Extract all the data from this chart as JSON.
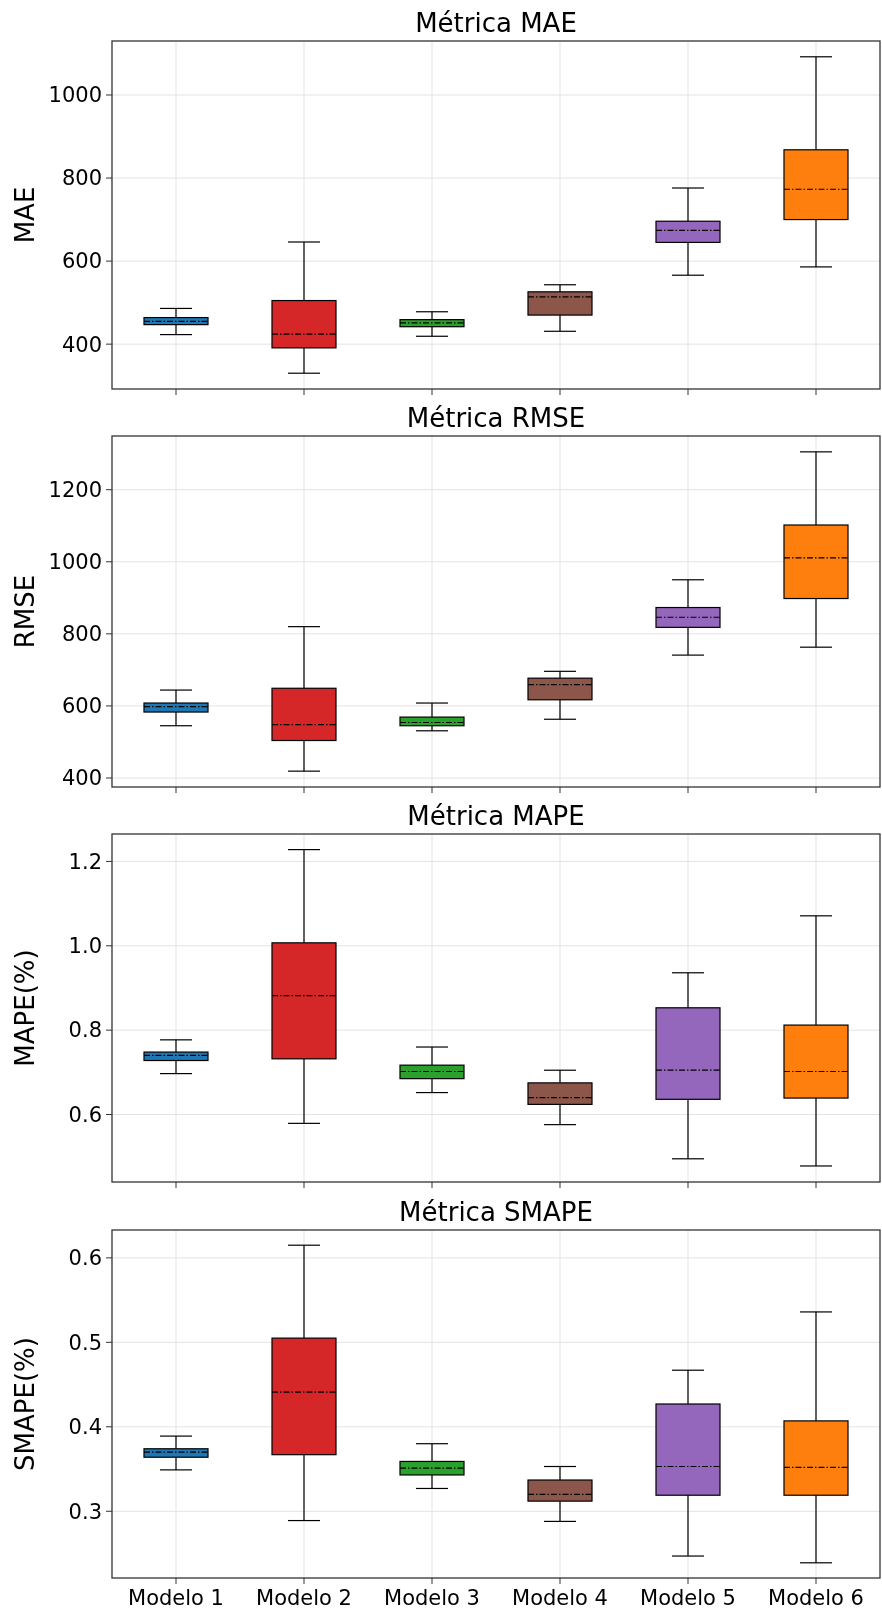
{
  "chart_data": [
    {
      "type": "box",
      "title": "Métrica MAE",
      "ylabel": "MAE",
      "categories": [
        null,
        null,
        null,
        null,
        null,
        null
      ],
      "colors": [
        "#1f77b4",
        "#d62728",
        "#2ca02c",
        "#8c564b",
        "#9467bd",
        "#ff7f0e"
      ],
      "ylim": [
        292,
        1130
      ],
      "yticks": [
        400,
        600,
        800,
        1000
      ],
      "grid": true,
      "tick_labels": "y",
      "boxes": [
        {
          "low": 423,
          "q1": 447,
          "median": 455,
          "q3": 464,
          "high": 486
        },
        {
          "low": 330,
          "q1": 391,
          "median": 424,
          "q3": 505,
          "high": 646
        },
        {
          "low": 419,
          "q1": 442,
          "median": 451,
          "q3": 459,
          "high": 478
        },
        {
          "low": 431,
          "q1": 470,
          "median": 514,
          "q3": 526,
          "high": 543
        },
        {
          "low": 566,
          "q1": 645,
          "median": 674,
          "q3": 696,
          "high": 776
        },
        {
          "low": 586,
          "q1": 700,
          "median": 773,
          "q3": 868,
          "high": 1092
        }
      ]
    },
    {
      "type": "box",
      "title": "Métrica RMSE",
      "ylabel": "RMSE",
      "categories": [
        null,
        null,
        null,
        null,
        null,
        null
      ],
      "colors": [
        "#1f77b4",
        "#d62728",
        "#2ca02c",
        "#8c564b",
        "#9467bd",
        "#ff7f0e"
      ],
      "ylim": [
        375,
        1349
      ],
      "yticks": [
        400,
        600,
        800,
        1000,
        1200
      ],
      "grid": true,
      "tick_labels": "y",
      "boxes": [
        {
          "low": 545,
          "q1": 583,
          "median": 598,
          "q3": 608,
          "high": 644
        },
        {
          "low": 419,
          "q1": 504,
          "median": 548,
          "q3": 649,
          "high": 820
        },
        {
          "low": 531,
          "q1": 545,
          "median": 554,
          "q3": 569,
          "high": 608
        },
        {
          "low": 563,
          "q1": 617,
          "median": 659,
          "q3": 677,
          "high": 696
        },
        {
          "low": 741,
          "q1": 818,
          "median": 846,
          "q3": 873,
          "high": 950
        },
        {
          "low": 763,
          "q1": 898,
          "median": 1011,
          "q3": 1102,
          "high": 1305
        }
      ]
    },
    {
      "type": "box",
      "title": "Métrica MAPE",
      "ylabel": "MAPE(%)",
      "categories": [
        null,
        null,
        null,
        null,
        null,
        null
      ],
      "colors": [
        "#1f77b4",
        "#d62728",
        "#2ca02c",
        "#8c564b",
        "#9467bd",
        "#ff7f0e"
      ],
      "ylim": [
        0.44,
        1.265
      ],
      "yticks": [
        {
          "value": 0.6,
          "label": "0.6"
        },
        {
          "value": 0.8,
          "label": "0.8"
        },
        {
          "value": 1.0,
          "label": "1.0"
        },
        {
          "value": 1.2,
          "label": "1.2"
        }
      ],
      "grid": true,
      "tick_labels": "y",
      "boxes": [
        {
          "low": 0.697,
          "q1": 0.728,
          "median": 0.74,
          "q3": 0.748,
          "high": 0.777
        },
        {
          "low": 0.579,
          "q1": 0.732,
          "median": 0.882,
          "q3": 1.007,
          "high": 1.228
        },
        {
          "low": 0.652,
          "q1": 0.685,
          "median": 0.702,
          "q3": 0.717,
          "high": 0.76
        },
        {
          "low": 0.576,
          "q1": 0.624,
          "median": 0.64,
          "q3": 0.675,
          "high": 0.705
        },
        {
          "low": 0.495,
          "q1": 0.636,
          "median": 0.705,
          "q3": 0.853,
          "high": 0.936
        },
        {
          "low": 0.478,
          "q1": 0.639,
          "median": 0.702,
          "q3": 0.812,
          "high": 1.071
        }
      ]
    },
    {
      "type": "box",
      "title": "Métrica SMAPE",
      "ylabel": "SMAPE(%)",
      "categories": [
        "Modelo 1",
        "Modelo 2",
        "Modelo 3",
        "Modelo 4",
        "Modelo 5",
        "Modelo 6"
      ],
      "colors": [
        "#1f77b4",
        "#d62728",
        "#2ca02c",
        "#8c564b",
        "#9467bd",
        "#ff7f0e"
      ],
      "ylim": [
        0.221,
        0.633
      ],
      "yticks": [
        0.3,
        0.4,
        0.5,
        0.6
      ],
      "grid": true,
      "boxes": [
        {
          "low": 0.349,
          "q1": 0.364,
          "median": 0.37,
          "q3": 0.374,
          "high": 0.389
        },
        {
          "low": 0.289,
          "q1": 0.367,
          "median": 0.441,
          "q3": 0.505,
          "high": 0.615
        },
        {
          "low": 0.327,
          "q1": 0.343,
          "median": 0.351,
          "q3": 0.359,
          "high": 0.38
        },
        {
          "low": 0.288,
          "q1": 0.312,
          "median": 0.32,
          "q3": 0.337,
          "high": 0.353
        },
        {
          "low": 0.247,
          "q1": 0.319,
          "median": 0.353,
          "q3": 0.427,
          "high": 0.467
        },
        {
          "low": 0.239,
          "q1": 0.319,
          "median": 0.352,
          "q3": 0.407,
          "high": 0.536
        }
      ]
    }
  ]
}
